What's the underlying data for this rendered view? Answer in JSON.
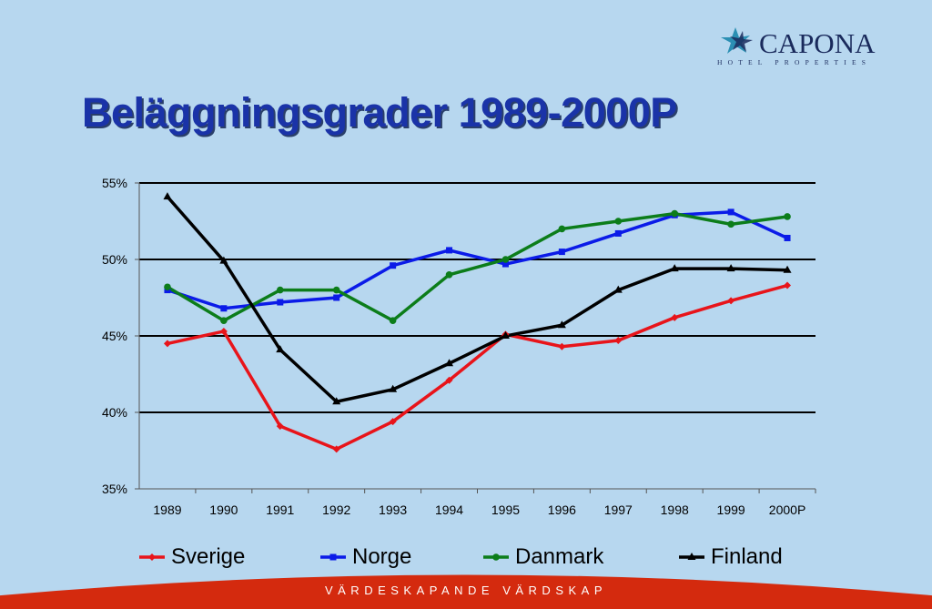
{
  "logo": {
    "name": "CAPONA",
    "subtitle": "HOTEL PROPERTIES",
    "star_colors": [
      "#2b8fb3",
      "#1a2a5c"
    ]
  },
  "slide": {
    "title": "Beläggningsgrader 1989-2000P",
    "footer": "VÄRDESKAPANDE VÄRDSKAP",
    "footer_color": "#d42a0e",
    "background": "#b7d7ef"
  },
  "chart_data": {
    "type": "line",
    "title": "",
    "xlabel": "",
    "ylabel": "",
    "categories": [
      "1989",
      "1990",
      "1991",
      "1992",
      "1993",
      "1994",
      "1995",
      "1996",
      "1997",
      "1998",
      "1999",
      "2000P"
    ],
    "ylim": [
      35,
      55
    ],
    "yticks": [
      35,
      40,
      45,
      50,
      55
    ],
    "ytick_labels": [
      "35%",
      "40%",
      "45%",
      "50%",
      "55%"
    ],
    "grid": "horizontal",
    "legend_position": "bottom",
    "series": [
      {
        "name": "Sverige",
        "color": "#e8141a",
        "marker": "diamond",
        "values": [
          44.5,
          45.3,
          39.1,
          37.6,
          39.4,
          42.1,
          45.1,
          44.3,
          44.7,
          46.2,
          47.3,
          48.3
        ]
      },
      {
        "name": "Norge",
        "color": "#0b1be8",
        "marker": "square",
        "values": [
          48.0,
          46.8,
          47.2,
          47.5,
          49.6,
          50.6,
          49.7,
          50.5,
          51.7,
          52.9,
          53.1,
          51.4
        ]
      },
      {
        "name": "Danmark",
        "color": "#0c7d1a",
        "marker": "circle",
        "values": [
          48.2,
          46.0,
          48.0,
          48.0,
          46.0,
          49.0,
          50.0,
          52.0,
          52.5,
          53.0,
          52.3,
          52.8
        ]
      },
      {
        "name": "Finland",
        "color": "#000000",
        "marker": "triangle",
        "values": [
          54.1,
          49.9,
          44.1,
          40.7,
          41.5,
          43.2,
          45.0,
          45.7,
          48.0,
          49.4,
          49.4,
          49.3
        ]
      }
    ]
  }
}
